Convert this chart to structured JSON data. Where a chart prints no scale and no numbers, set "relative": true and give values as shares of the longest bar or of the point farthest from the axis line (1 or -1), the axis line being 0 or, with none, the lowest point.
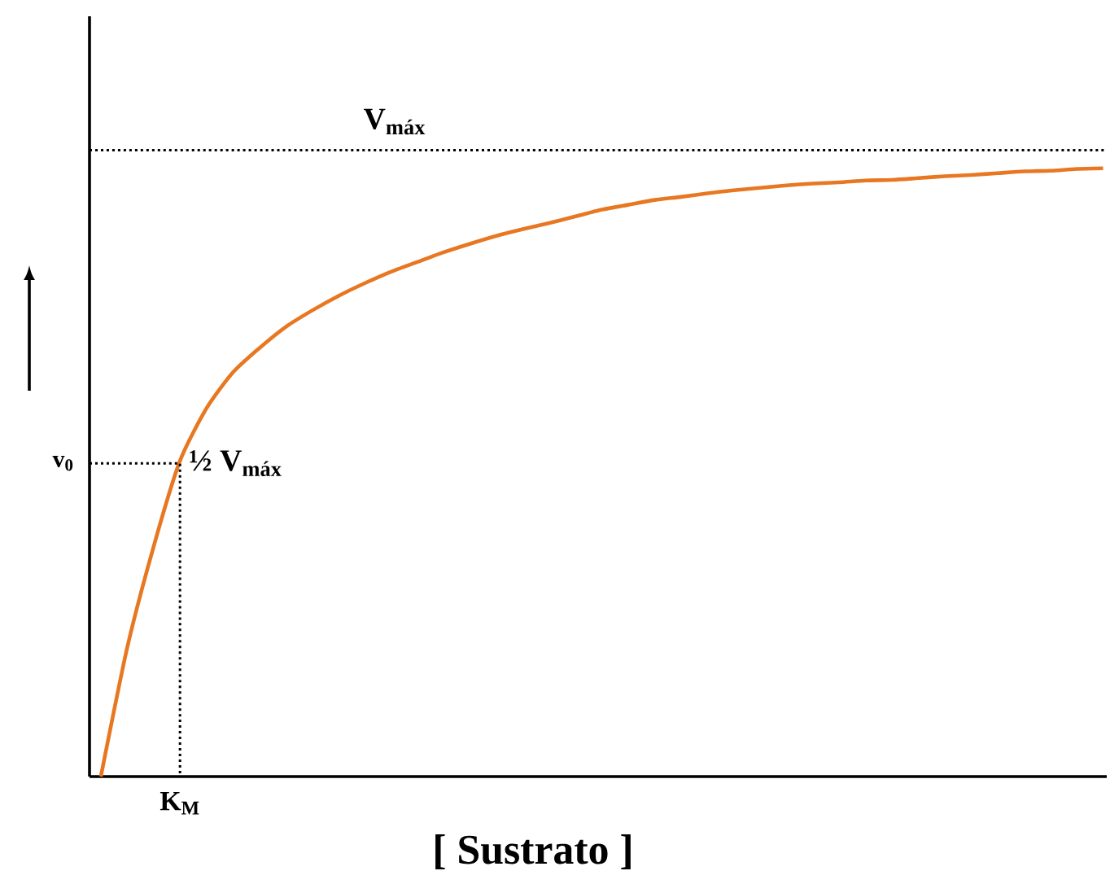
{
  "chart_data": {
    "type": "line",
    "relative": true,
    "xlabel": "[ Sustrato ]",
    "ylabel": "v$_{0}$",
    "categories": [
      null,
      null,
      null,
      null,
      null,
      null,
      null,
      null,
      null,
      null,
      null,
      null,
      null,
      null,
      null,
      null,
      null,
      null,
      null,
      null,
      null,
      null,
      null,
      null,
      null,
      null,
      null,
      null,
      null,
      null,
      null,
      null,
      null,
      null,
      null,
      null,
      null,
      null,
      null
    ],
    "series": [
      {
        "color": "#e87722",
        "values": [
          0,
          0.212,
          0.378,
          0.519,
          0.605,
          0.664,
          0.704,
          0.739,
          0.766,
          0.79,
          0.811,
          0.83,
          0.846,
          0.862,
          0.876,
          0.889,
          0.9,
          0.91,
          0.921,
          0.932,
          0.94,
          0.948,
          0.953,
          0.959,
          0.964,
          0.968,
          0.972,
          0.975,
          0.977,
          0.98,
          0.981,
          0.984,
          0.987,
          0.989,
          0.992,
          0.995,
          0.996,
          0.999,
          1.0
        ]
      }
    ],
    "marker": "none",
    "line_style": "solid",
    "ref_lines": [
      {
        "axis": "y",
        "value": 1.03,
        "label": "V$_{máx}$",
        "color": "#000000",
        "line_style": "dotted"
      },
      {
        "axis": "y",
        "value": 0.515,
        "label": "½ V$_{máx}$",
        "color": "#000000",
        "line_style": "dotted"
      }
    ],
    "annotations": [
      "K$_{M}$"
    ]
  }
}
